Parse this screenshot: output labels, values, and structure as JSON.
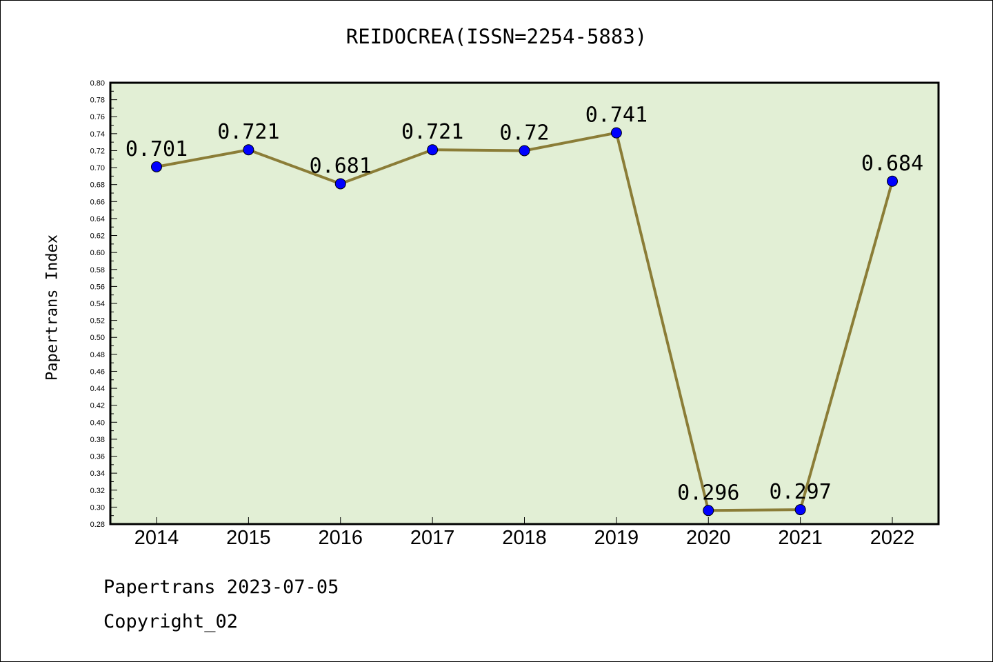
{
  "chart_data": {
    "type": "line",
    "title": "REIDOCREA(ISSN=2254-5883)",
    "xlabel": "",
    "ylabel": "Papertrans Index",
    "categories": [
      "2014",
      "2015",
      "2016",
      "2017",
      "2018",
      "2019",
      "2020",
      "2021",
      "2022"
    ],
    "series": [
      {
        "values": [
          0.701,
          0.721,
          0.681,
          0.721,
          0.72,
          0.741,
          0.296,
          0.297,
          0.684
        ],
        "labels": [
          "0.701",
          "0.721",
          "0.681",
          "0.721",
          "0.72",
          "0.741",
          "0.296",
          "0.297",
          "0.684"
        ]
      }
    ],
    "ylim": [
      0.28,
      0.8
    ],
    "yticks": [
      "0.28",
      "0.30",
      "0.32",
      "0.34",
      "0.36",
      "0.38",
      "0.40",
      "0.42",
      "0.44",
      "0.46",
      "0.48",
      "0.50",
      "0.52",
      "0.54",
      "0.56",
      "0.58",
      "0.60",
      "0.62",
      "0.64",
      "0.66",
      "0.68",
      "0.70",
      "0.72",
      "0.74",
      "0.76",
      "0.78",
      "0.80"
    ],
    "grid": false,
    "colors": {
      "plot_background": "#e2efd5",
      "line": "#8b7d37",
      "marker": "#0000ff",
      "axis": "#000000"
    }
  },
  "footer": {
    "line1": "Papertrans 2023-07-05",
    "line2": "Copyright_02"
  }
}
